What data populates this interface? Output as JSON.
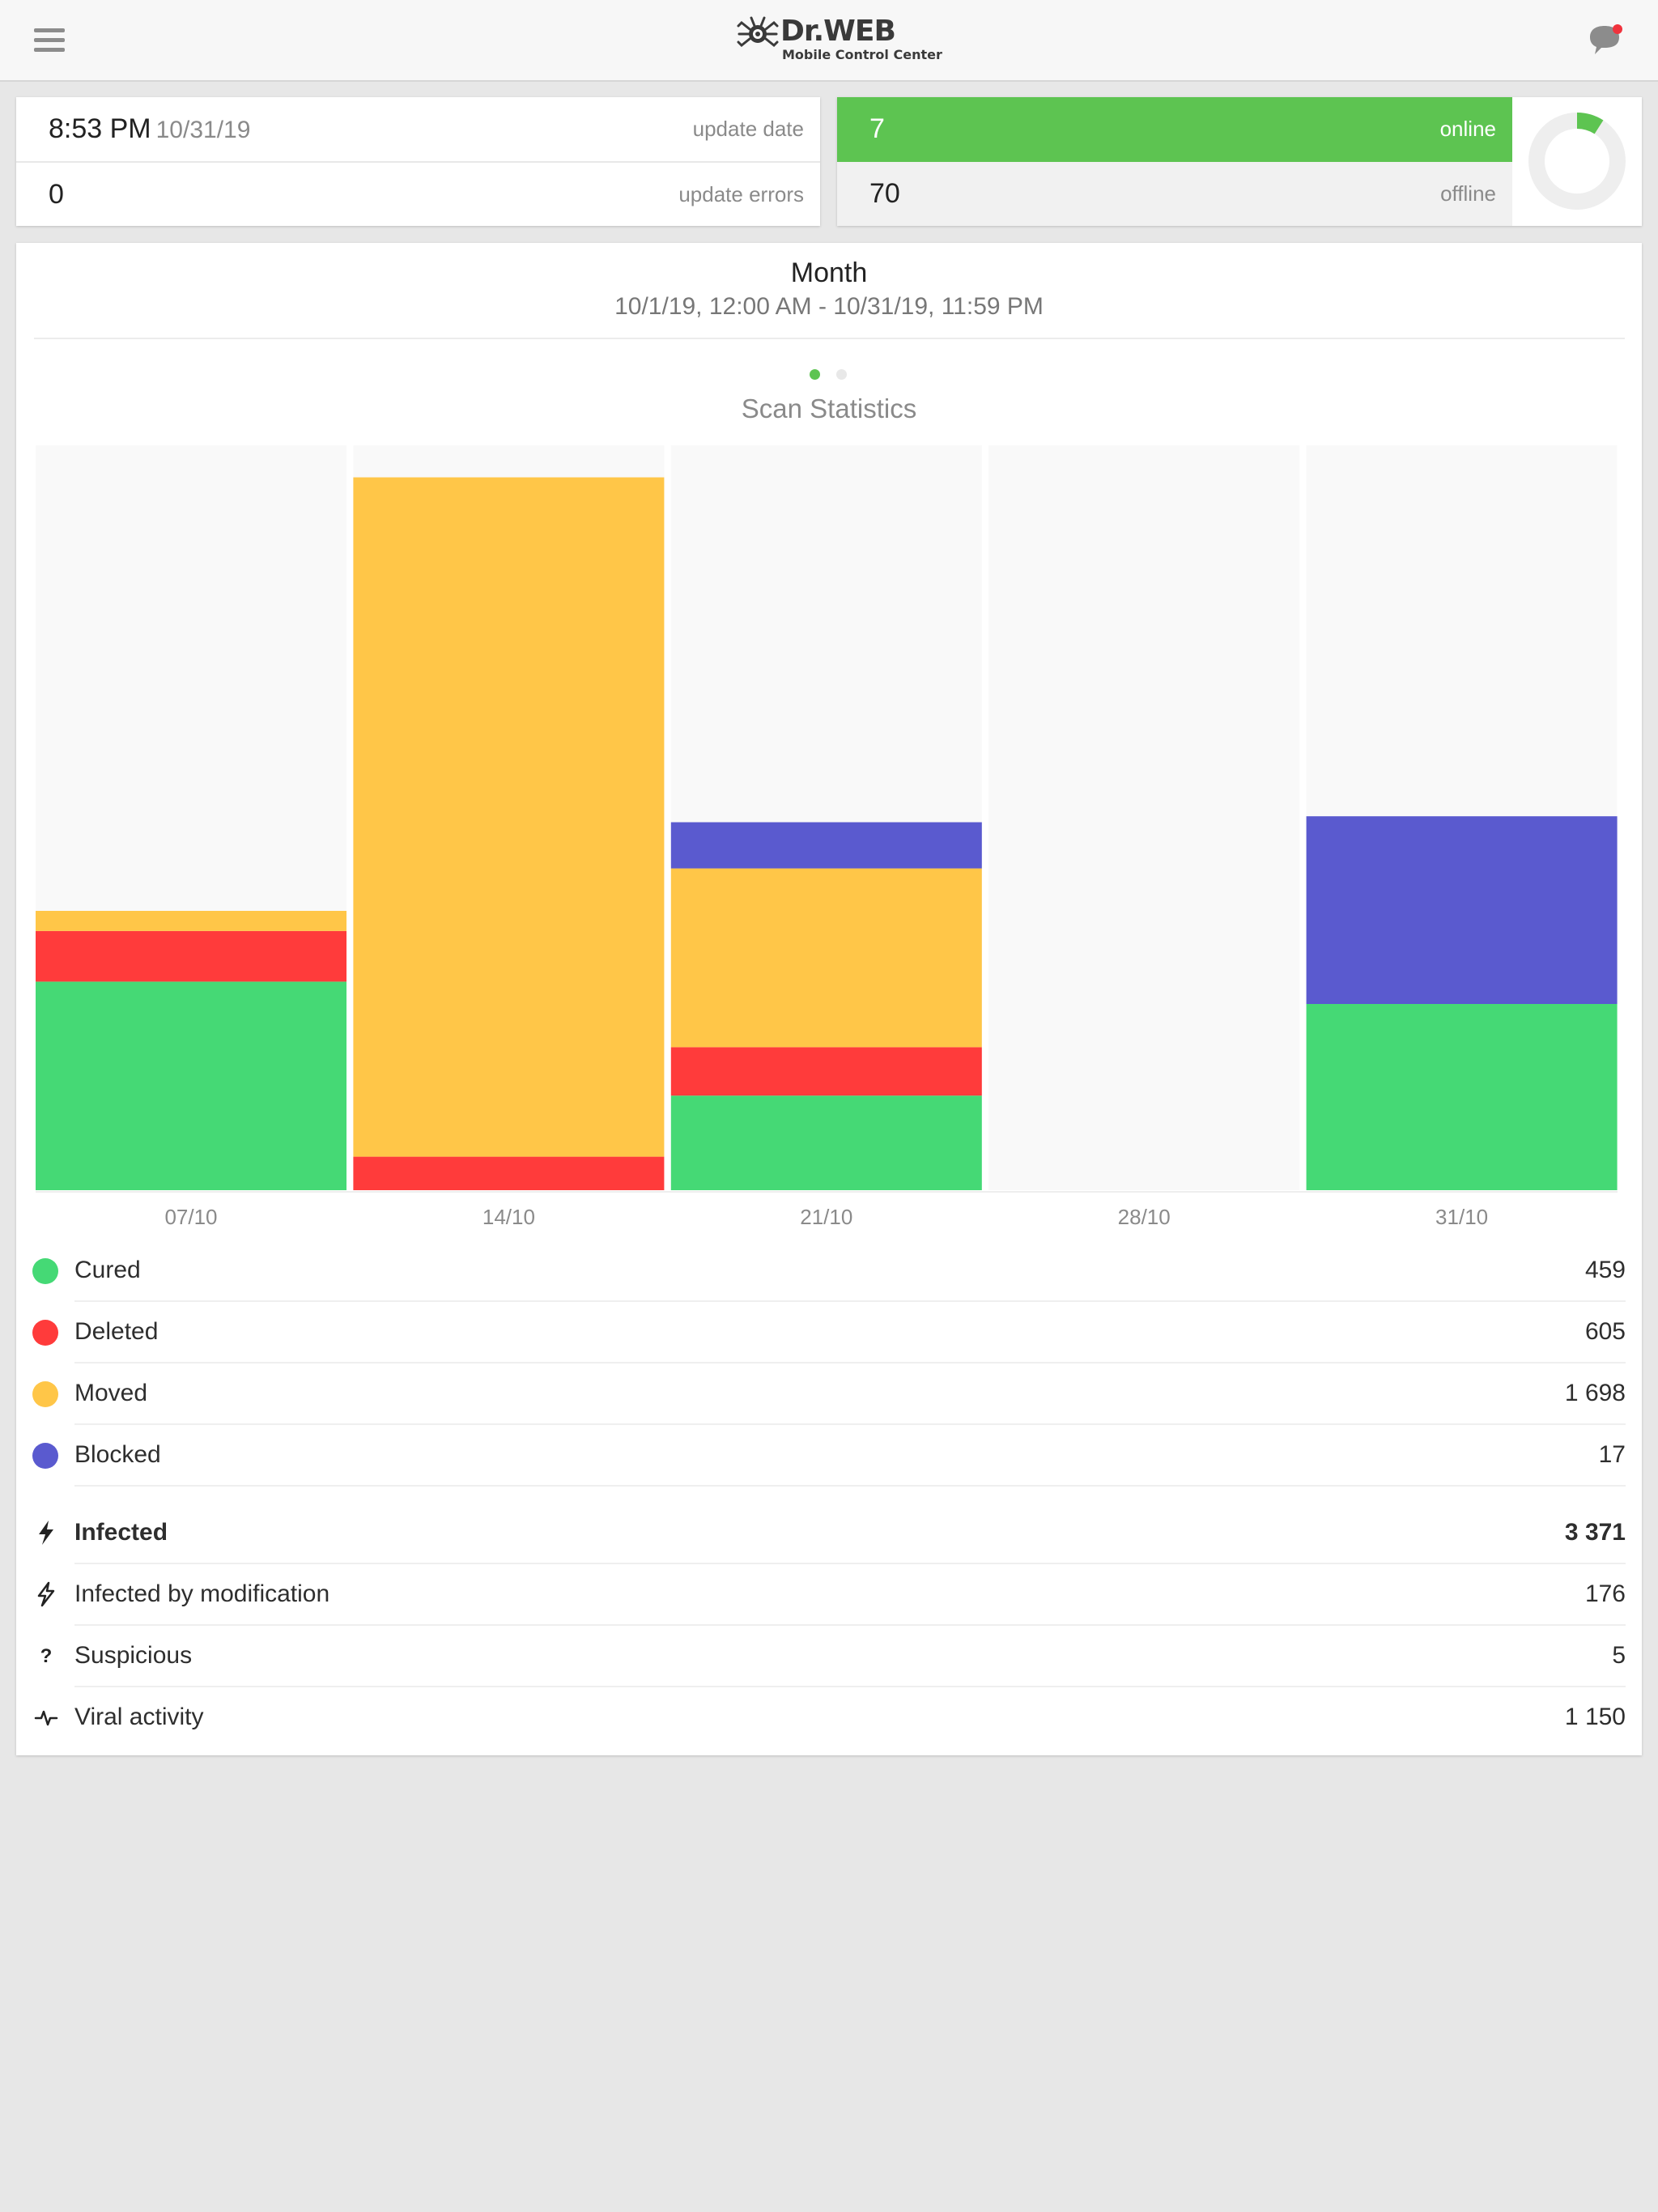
{
  "header": {
    "brand": "Dr.WEB",
    "subtitle": "Mobile Control Center",
    "menu_icon": "hamburger-icon",
    "notification_icon": "chat-bubble-icon",
    "notification_dot_color": "#f0333d"
  },
  "update_card": {
    "time": "8:53 PM",
    "date": "10/31/19",
    "update_date_label": "update date",
    "errors_value": "0",
    "update_errors_label": "update errors"
  },
  "devices_card": {
    "online_value": "7",
    "online_label": "online",
    "offline_value": "70",
    "offline_label": "offline",
    "online_color": "#5dc451",
    "online_fraction": 0.0909
  },
  "period": {
    "title": "Month",
    "range": "10/1/19, 12:00 AM - 10/31/19, 11:59 PM"
  },
  "chart_title": "Scan Statistics",
  "chart_data": {
    "type": "bar",
    "stacked": true,
    "categories": [
      "07/10",
      "14/10",
      "21/10",
      "28/10",
      "31/10"
    ],
    "series": [
      {
        "name": "Cured",
        "color": "#45d975",
        "values": [
          280,
          0,
          127,
          0,
          250
        ]
      },
      {
        "name": "Deleted",
        "color": "#ff3b3b",
        "values": [
          68,
          45,
          65,
          0,
          0
        ]
      },
      {
        "name": "Moved",
        "color": "#ffc648",
        "values": [
          27,
          912,
          240,
          0,
          0
        ]
      },
      {
        "name": "Blocked",
        "color": "#5a5acf",
        "values": [
          0,
          0,
          62,
          0,
          252
        ]
      }
    ],
    "ylim": [
      0,
      1000
    ],
    "grid": false,
    "legend": "below"
  },
  "legend_items": [
    {
      "name": "Cured",
      "value": "459",
      "color": "#45d975"
    },
    {
      "name": "Deleted",
      "value": "605",
      "color": "#ff3b3b"
    },
    {
      "name": "Moved",
      "value": "1 698",
      "color": "#ffc648"
    },
    {
      "name": "Blocked",
      "value": "17",
      "color": "#5a5acf"
    }
  ],
  "threat_items": [
    {
      "name": "Infected",
      "value": "3 371",
      "icon": "lightning-icon"
    },
    {
      "name": "Infected by modification",
      "value": "176",
      "icon": "lightning-outline-icon"
    },
    {
      "name": "Suspicious",
      "value": "5",
      "icon": "question-icon"
    },
    {
      "name": "Viral activity",
      "value": "1 150",
      "icon": "pulse-icon"
    }
  ]
}
